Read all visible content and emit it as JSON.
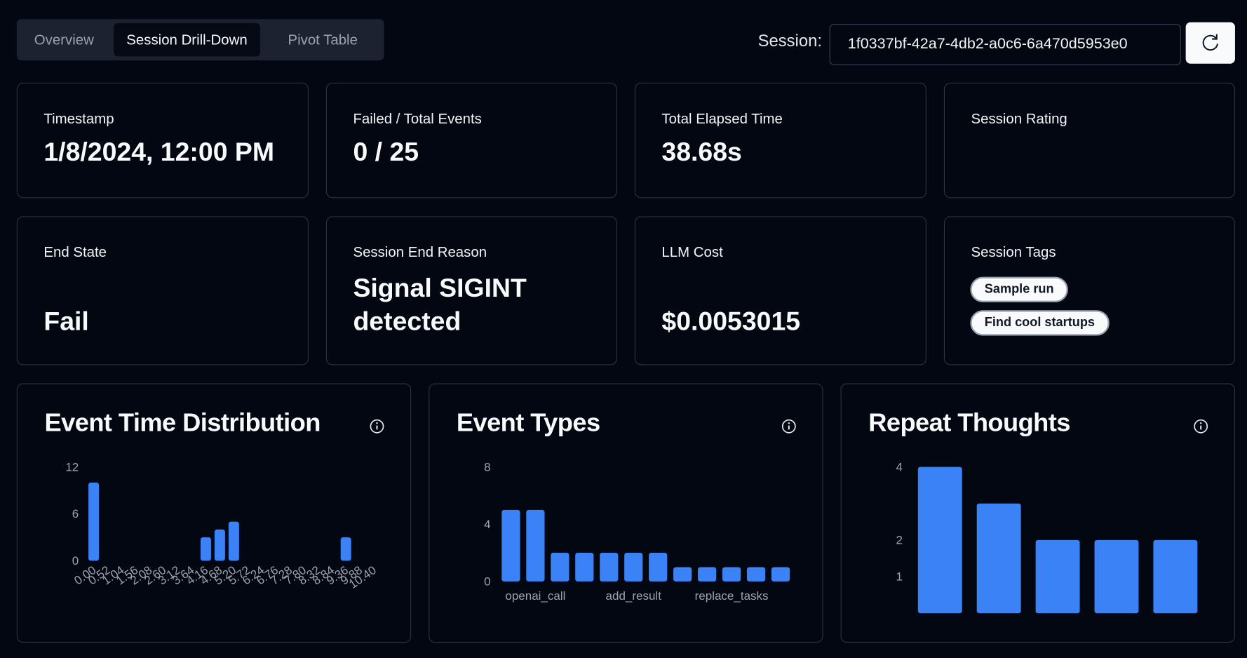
{
  "tabs": [
    "Overview",
    "Session Drill-Down",
    "Pivot Table"
  ],
  "session": {
    "label": "Session:",
    "id": "1f0337bf-42a7-4db2-a0c6-6a470d5953e0"
  },
  "cards": [
    {
      "label": "Timestamp",
      "value": "1/8/2024, 12:00 PM"
    },
    {
      "label": "Failed / Total Events",
      "value": "0 / 25"
    },
    {
      "label": "Total Elapsed Time",
      "value": "38.68s"
    },
    {
      "label": "Session Rating"
    },
    {
      "label": "End State",
      "value": "Fail"
    },
    {
      "label": "Session End Reason",
      "value": "Signal SIGINT detected"
    },
    {
      "label": "LLM Cost",
      "value": "$0.0053015"
    },
    {
      "label": "Session Tags",
      "tags": [
        "Sample run",
        "Find cool startups"
      ]
    }
  ],
  "chart_data": [
    {
      "type": "bar",
      "title": "Event Time Distribution",
      "color": "#3b82f6",
      "categories": [
        "0.00",
        "0.52",
        "1.04",
        "1.56",
        "2.08",
        "2.60",
        "3.12",
        "3.64",
        "4.16",
        "4.68",
        "5.20",
        "5.72",
        "6.24",
        "6.76",
        "7.28",
        "7.80",
        "8.32",
        "8.84",
        "9.36",
        "9.88",
        "10.40"
      ],
      "values": [
        10,
        0,
        0,
        0,
        0,
        0,
        0,
        0,
        3,
        4,
        5,
        0,
        0,
        0,
        0,
        0,
        0,
        0,
        3,
        0,
        0
      ],
      "ylim": [
        0,
        12
      ],
      "yticks": [
        0,
        6,
        12
      ]
    },
    {
      "type": "bar",
      "title": "Event Types",
      "color": "#3b82f6",
      "categories": [
        null,
        "openai_call",
        null,
        null,
        null,
        "add_result",
        null,
        null,
        null,
        "replace_tasks",
        null,
        null
      ],
      "values": [
        5,
        5,
        2,
        2,
        2,
        2,
        2,
        1,
        1,
        1,
        1,
        1
      ],
      "ylim": [
        0,
        8
      ],
      "yticks": [
        0,
        4,
        8
      ]
    },
    {
      "type": "bar",
      "title": "Repeat Thoughts",
      "color": "#3b82f6",
      "categories": [
        null,
        null,
        null,
        null,
        null
      ],
      "values": [
        4,
        3,
        2,
        2,
        2
      ],
      "ylim": [
        0,
        4
      ],
      "yticks": [
        1,
        2,
        4
      ]
    }
  ]
}
